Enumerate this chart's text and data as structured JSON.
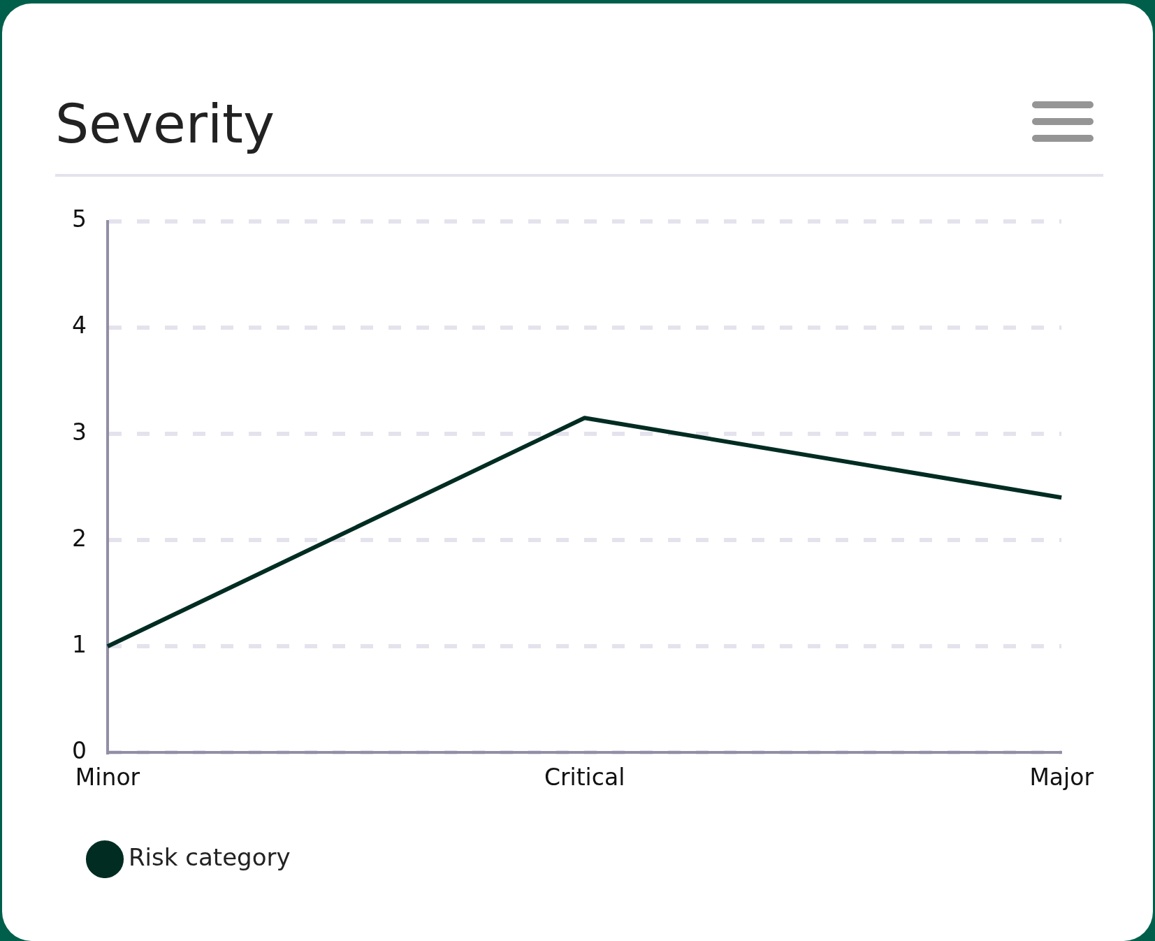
{
  "chart_data": {
    "type": "line",
    "title": "Severity",
    "categories": [
      "Minor",
      "Critical",
      "Major"
    ],
    "series": [
      {
        "name": "Risk category",
        "color": "#002c22",
        "values": [
          1,
          3.15,
          2.4
        ]
      }
    ],
    "ylim": [
      0,
      5
    ],
    "yticks": [
      0,
      1,
      2,
      3,
      4,
      5
    ],
    "grid": "y",
    "legend": "bottom left",
    "marker": "none",
    "line_style": "solid"
  }
}
